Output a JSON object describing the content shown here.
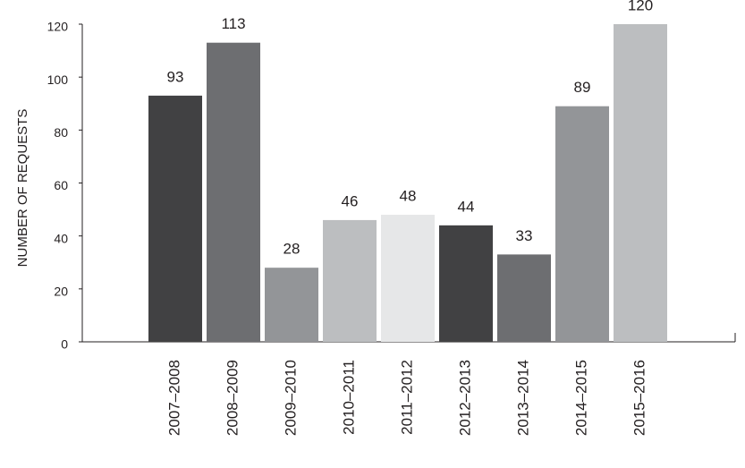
{
  "chart_data": {
    "type": "bar",
    "y_label": "NUMBER OF REQUESTS",
    "categories": [
      "2007–2008",
      "2008–2009",
      "2009–2010",
      "2010–2011",
      "2011–2012",
      "2012–2013",
      "2013–2014",
      "2014–2015",
      "2015–2016"
    ],
    "values": [
      93,
      113,
      28,
      46,
      48,
      44,
      33,
      89,
      120
    ],
    "colors": [
      "#414143",
      "#6d6e71",
      "#939598",
      "#bcbec0",
      "#e6e7e8",
      "#414143",
      "#6d6e71",
      "#939598",
      "#bcbec0"
    ],
    "ylim": [
      0,
      120
    ],
    "yticks": [
      0,
      20,
      40,
      60,
      80,
      100,
      120
    ],
    "grid": false
  }
}
